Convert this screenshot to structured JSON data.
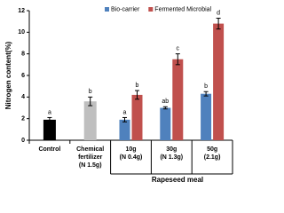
{
  "chart_data": {
    "type": "bar",
    "y_label": "Nitrogen content(%)",
    "categories": [
      [
        "Control"
      ],
      [
        "Chemical",
        "fertilizer",
        "(N 1.5g)"
      ],
      [
        "10g",
        "(N 0.4g)"
      ],
      [
        "30g",
        "(N 1.3g)"
      ],
      [
        "50g",
        "(2.1g)"
      ]
    ],
    "group_label": "Rapeseed meal",
    "single_values": [
      1.9,
      3.6,
      null,
      null,
      null
    ],
    "single_errors": [
      0.2,
      0.4,
      null,
      null,
      null
    ],
    "single_colors": [
      "#000000",
      "#bfbfbf",
      null,
      null,
      null
    ],
    "single_letters": [
      "a",
      "b",
      null,
      null,
      null
    ],
    "series": [
      {
        "name": "Bio-carrier",
        "color": "#4f81bd",
        "values": [
          null,
          null,
          1.9,
          3.0,
          4.3
        ],
        "errors": [
          null,
          null,
          0.2,
          0.1,
          0.2
        ],
        "letters": [
          null,
          null,
          "a",
          "ab",
          "b"
        ]
      },
      {
        "name": "Fermented Microbial",
        "color": "#c0504d",
        "values": [
          null,
          null,
          4.2,
          7.5,
          10.8
        ],
        "errors": [
          null,
          null,
          0.4,
          0.5,
          0.5
        ],
        "letters": [
          null,
          null,
          "b",
          "c",
          "d"
        ]
      }
    ],
    "ylim": [
      0,
      12
    ],
    "yticks": [
      0,
      2,
      4,
      6,
      8,
      10,
      12
    ],
    "grid": false,
    "legend": "top"
  }
}
